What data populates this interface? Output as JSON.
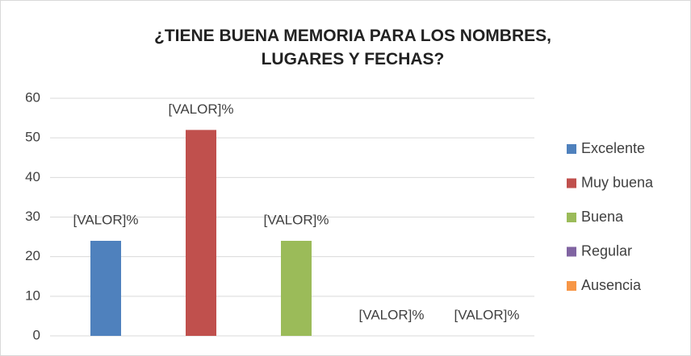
{
  "chart_data": {
    "type": "bar",
    "title": "¿TIENE BUENA MEMORIA PARA LOS NOMBRES, LUGARES Y FECHAS?",
    "categories": [
      null
    ],
    "series": [
      {
        "name": "Excelente",
        "color": "#4f81bd",
        "values": [
          24
        ],
        "value_labels": [
          "[VALOR]%"
        ]
      },
      {
        "name": "Muy buena",
        "color": "#c0504d",
        "values": [
          52
        ],
        "value_labels": [
          "[VALOR]%"
        ]
      },
      {
        "name": "Buena",
        "color": "#9bbb59",
        "values": [
          24
        ],
        "value_labels": [
          "[VALOR]%"
        ]
      },
      {
        "name": "Regular",
        "color": "#8064a2",
        "values": [
          0
        ],
        "value_labels": [
          "[VALOR]%"
        ]
      },
      {
        "name": "Ausencia",
        "color": "#f79646",
        "values": [
          0
        ],
        "value_labels": [
          "[VALOR]%"
        ]
      }
    ],
    "ylim": [
      0,
      60
    ],
    "yticks": [
      0,
      10,
      20,
      30,
      40,
      50,
      60
    ],
    "grid": true,
    "legend": "right"
  }
}
